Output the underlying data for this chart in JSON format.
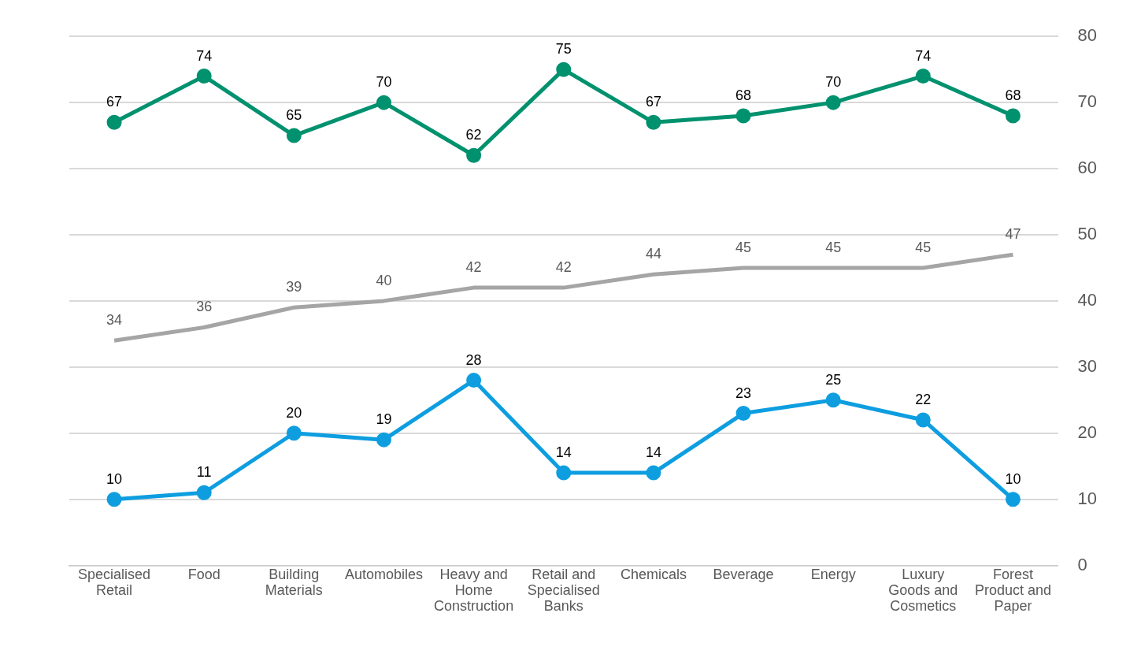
{
  "chart_data": {
    "type": "line",
    "categories": [
      "Specialised Retail",
      "Food",
      "Building Materials",
      "Automobiles",
      "Heavy and Home Construction",
      "Retail and Specialised Banks",
      "Chemicals",
      "Beverage",
      "Energy",
      "Luxury Goods and Cosmetics",
      "Forest Product and Paper"
    ],
    "series": [
      {
        "color": "#00916e",
        "marker": "circle",
        "values": [
          67,
          74,
          65,
          70,
          62,
          75,
          67,
          68,
          70,
          74,
          68
        ]
      },
      {
        "color": "#a5a5a5",
        "marker": "none",
        "values": [
          34,
          36,
          39,
          40,
          42,
          42,
          44,
          45,
          45,
          45,
          47
        ]
      },
      {
        "color": "#0e9ee0",
        "marker": "circle",
        "values": [
          10,
          11,
          20,
          19,
          28,
          14,
          14,
          23,
          25,
          22,
          10
        ]
      }
    ],
    "ylim": [
      0,
      80
    ],
    "yticks": [
      0,
      10,
      20,
      30,
      40,
      50,
      60,
      70,
      80
    ],
    "grid": "y",
    "legend": false,
    "data_labels": true,
    "line_style": "solid"
  }
}
